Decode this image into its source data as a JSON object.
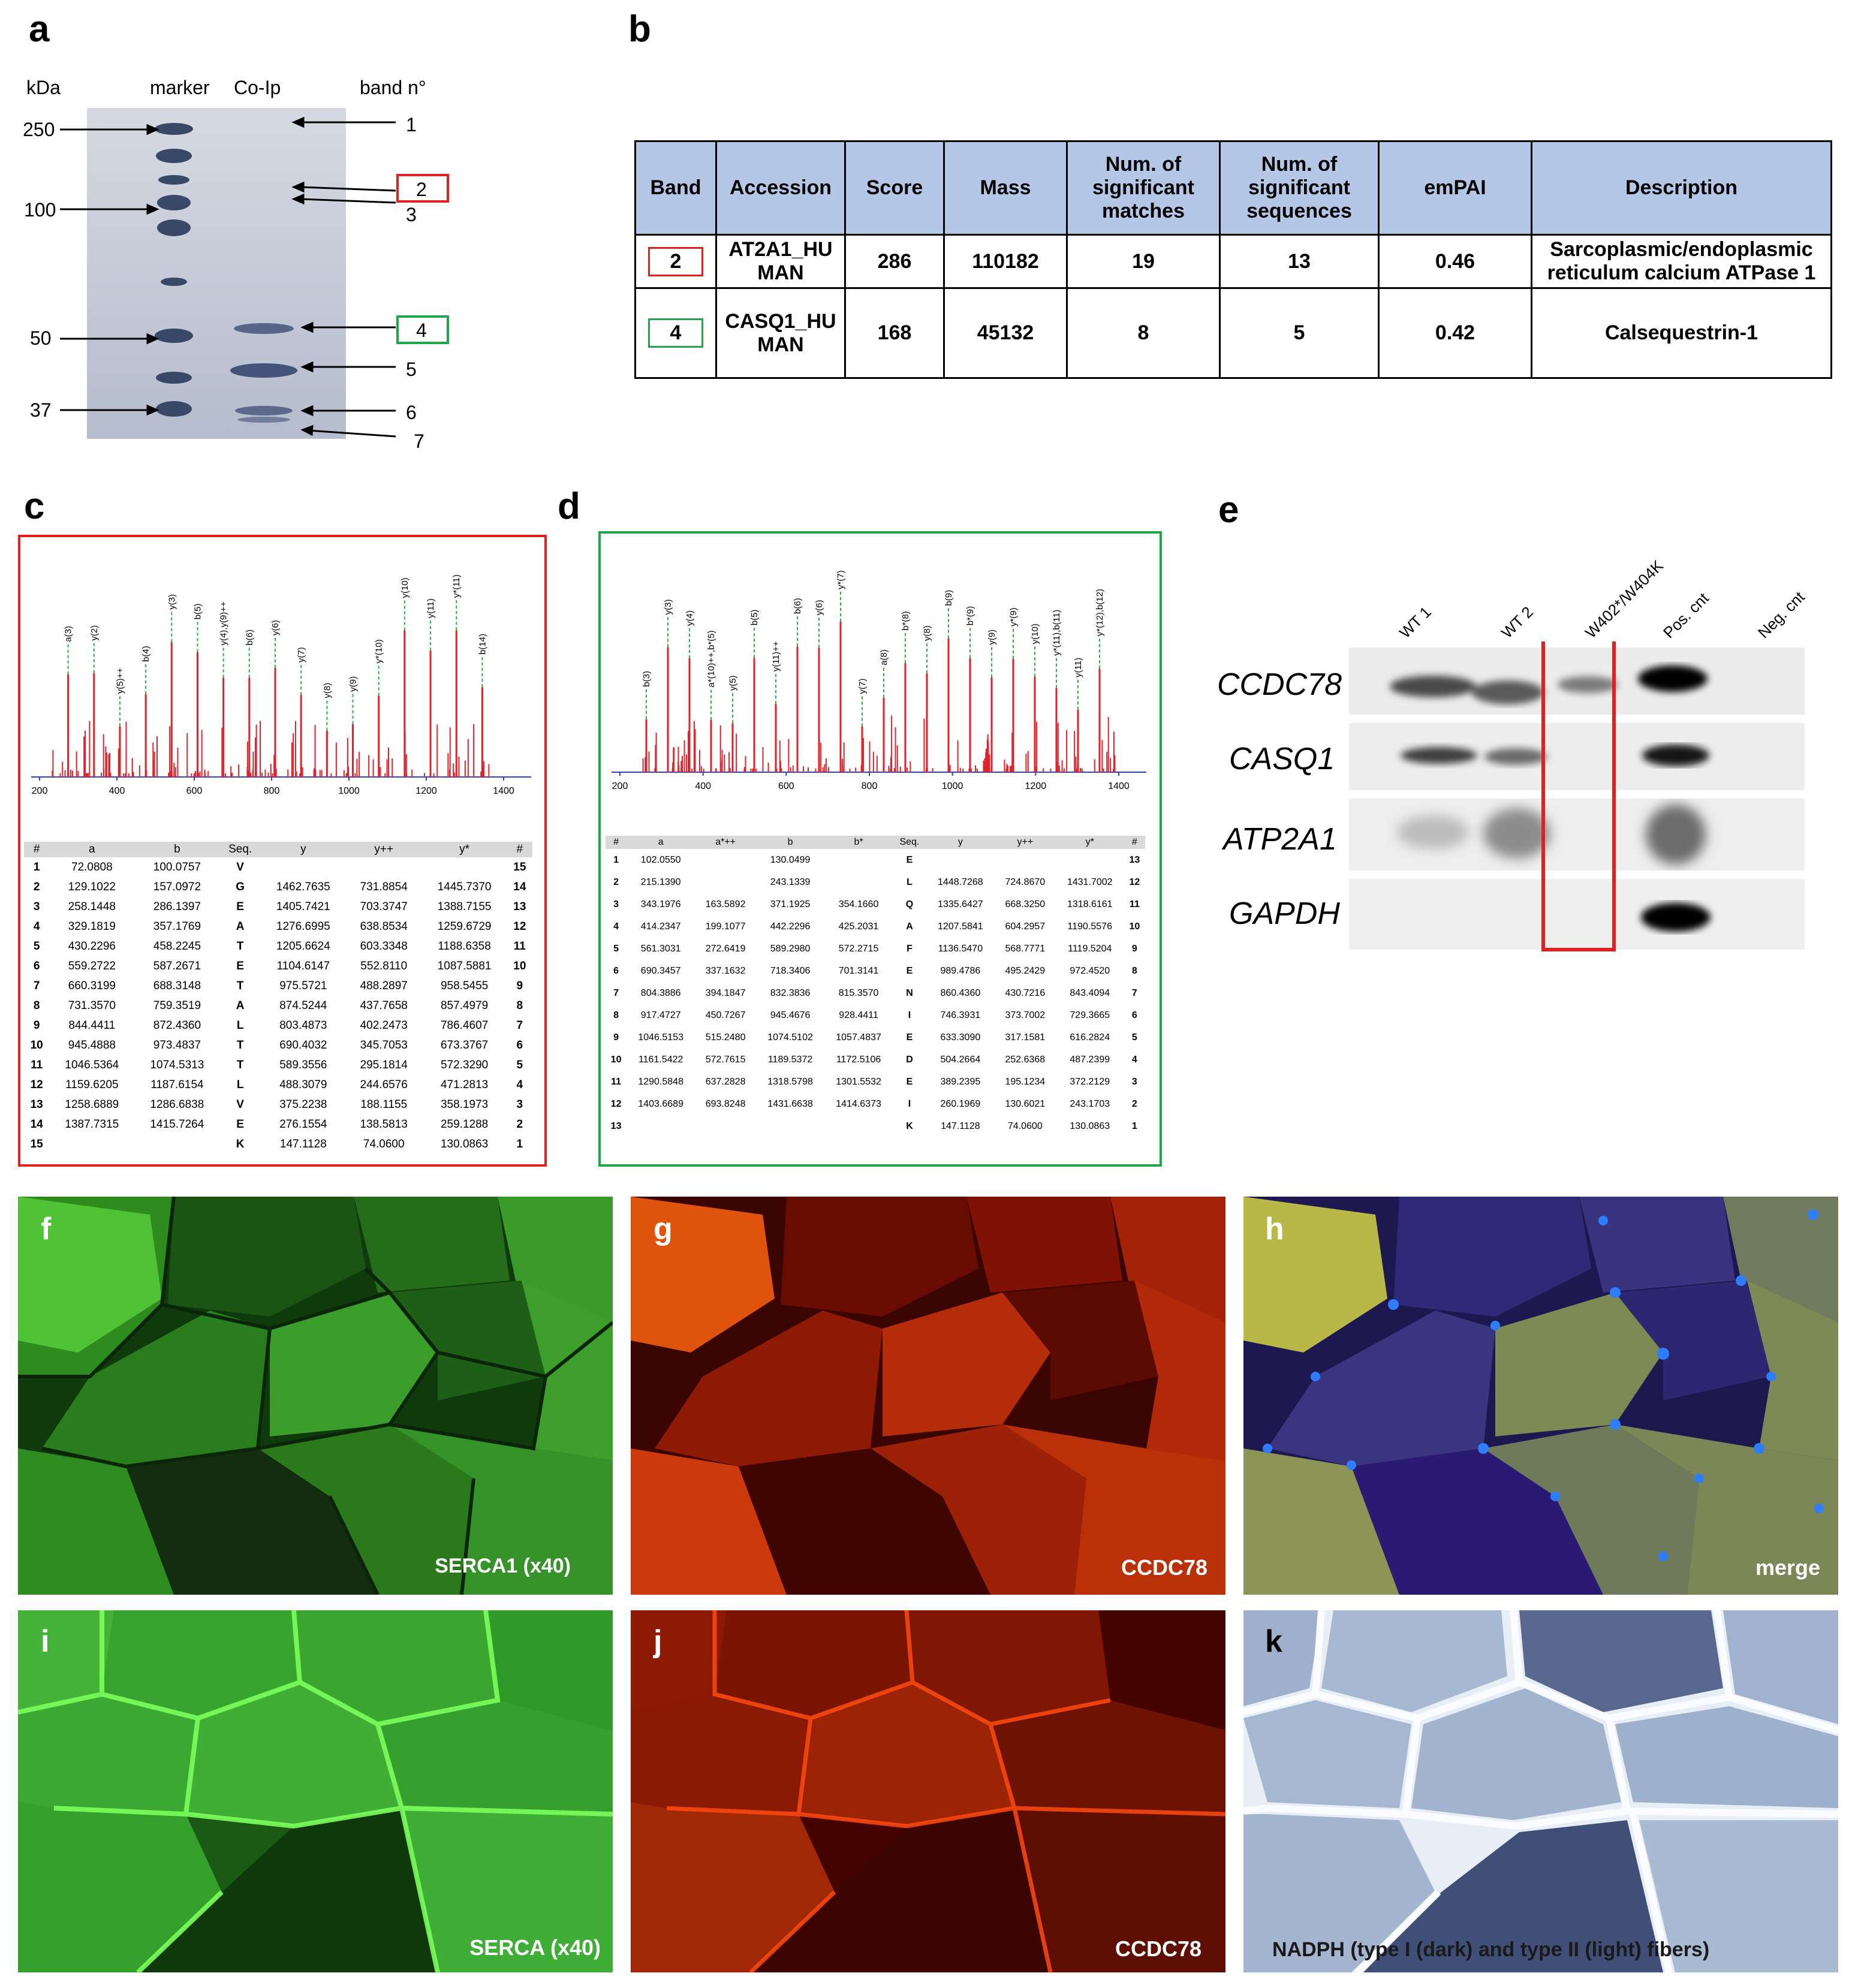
{
  "panel_letters": [
    "a",
    "b",
    "c",
    "d",
    "e",
    "f",
    "g",
    "h",
    "i",
    "j",
    "k"
  ],
  "gel": {
    "kda_label": "kDa",
    "lane_labels": [
      "marker",
      "Co-Ip"
    ],
    "band_header": "band n°",
    "markers": [
      "250",
      "100",
      "50",
      "37"
    ],
    "bands": [
      "1",
      "2",
      "3",
      "4",
      "5",
      "6",
      "7"
    ],
    "highlight_red_band": "2",
    "highlight_green_band": "4",
    "colors": {
      "red": "#e32020",
      "green": "#1fa54a",
      "gel": "#c3c9d6",
      "marker_band": "#2e3b5a"
    }
  },
  "ms_table": {
    "headers": [
      "Band",
      "Accession",
      "Score",
      "Mass",
      "Num. of significant matches",
      "Num. of significant sequences",
      "emPAI",
      "Description"
    ],
    "rows": [
      {
        "band": "2",
        "accession": "AT2A1_HUMAN",
        "score": "286",
        "mass": "110182",
        "matches": "19",
        "sequences": "13",
        "empai": "0.46",
        "description": "Sarcoplasmic/endoplasmic reticulum calcium ATPase 1"
      },
      {
        "band": "4",
        "accession": "CASQ1_HUMAN",
        "score": "168",
        "mass": "45132",
        "matches": "8",
        "sequences": "5",
        "empai": "0.42",
        "description": "Calsequestrin-1"
      }
    ]
  },
  "panel_c": {
    "axis_ticks": [
      "200",
      "400",
      "600",
      "800",
      "1000",
      "1200",
      "1400"
    ],
    "ion_labels": [
      "a(3)",
      "y(2)",
      "y(5)++",
      "b(4)",
      "y(3)",
      "b(5)",
      "y(4),y(9)++",
      "b(6)",
      "y(6)",
      "y(7)",
      "y(8)",
      "y(9)",
      "y*(10)",
      "y(10)",
      "y(11)",
      "y*(11)",
      "b(14)"
    ],
    "table_headers": [
      "#",
      "a",
      "b",
      "Seq.",
      "y",
      "y++",
      "y*",
      "#"
    ],
    "rows": [
      [
        "1",
        "72.0808",
        "100.0757",
        "V",
        "",
        "",
        "",
        "15"
      ],
      [
        "2",
        "129.1022",
        "157.0972",
        "G",
        "1462.7635",
        "731.8854",
        "1445.7370",
        "14"
      ],
      [
        "3",
        "258.1448",
        "286.1397",
        "E",
        "1405.7421",
        "703.3747",
        "1388.7155",
        "13"
      ],
      [
        "4",
        "329.1819",
        "357.1769",
        "A",
        "1276.6995",
        "638.8534",
        "1259.6729",
        "12"
      ],
      [
        "5",
        "430.2296",
        "458.2245",
        "T",
        "1205.6624",
        "603.3348",
        "1188.6358",
        "11"
      ],
      [
        "6",
        "559.2722",
        "587.2671",
        "E",
        "1104.6147",
        "552.8110",
        "1087.5881",
        "10"
      ],
      [
        "7",
        "660.3199",
        "688.3148",
        "T",
        "975.5721",
        "488.2897",
        "958.5455",
        "9"
      ],
      [
        "8",
        "731.3570",
        "759.3519",
        "A",
        "874.5244",
        "437.7658",
        "857.4979",
        "8"
      ],
      [
        "9",
        "844.4411",
        "872.4360",
        "L",
        "803.4873",
        "402.2473",
        "786.4607",
        "7"
      ],
      [
        "10",
        "945.4888",
        "973.4837",
        "T",
        "690.4032",
        "345.7053",
        "673.3767",
        "6"
      ],
      [
        "11",
        "1046.5364",
        "1074.5313",
        "T",
        "589.3556",
        "295.1814",
        "572.3290",
        "5"
      ],
      [
        "12",
        "1159.6205",
        "1187.6154",
        "L",
        "488.3079",
        "244.6576",
        "471.2813",
        "4"
      ],
      [
        "13",
        "1258.6889",
        "1286.6838",
        "V",
        "375.2238",
        "188.1155",
        "358.1973",
        "3"
      ],
      [
        "14",
        "1387.7315",
        "1415.7264",
        "E",
        "276.1554",
        "138.5813",
        "259.1288",
        "2"
      ],
      [
        "15",
        "",
        "",
        "K",
        "147.1128",
        "74.0600",
        "130.0863",
        "1"
      ]
    ]
  },
  "panel_d": {
    "axis_ticks": [
      "200",
      "400",
      "600",
      "800",
      "1000",
      "1200",
      "1400"
    ],
    "ion_labels": [
      "b(3)",
      "y(3)",
      "y(4)",
      "a*(10)++,b*(5)",
      "y(5)",
      "b(5)",
      "y(11)++",
      "b(6)",
      "y(6)",
      "y*(7)",
      "y(7)",
      "a(8)",
      "b*(8)",
      "y(8)",
      "b(9)",
      "b*(9)",
      "y(9)",
      "y*(9)",
      "y(10)",
      "y*(11),b(11)",
      "y(11)",
      "y*(12),b(12)"
    ],
    "table_headers": [
      "#",
      "a",
      "a*++",
      "b",
      "b*",
      "Seq.",
      "y",
      "y++",
      "y*",
      "#"
    ],
    "rows": [
      [
        "1",
        "102.0550",
        "",
        "130.0499",
        "",
        "E",
        "",
        "",
        "",
        "13"
      ],
      [
        "2",
        "215.1390",
        "",
        "243.1339",
        "",
        "L",
        "1448.7268",
        "724.8670",
        "1431.7002",
        "12"
      ],
      [
        "3",
        "343.1976",
        "163.5892",
        "371.1925",
        "354.1660",
        "Q",
        "1335.6427",
        "668.3250",
        "1318.6161",
        "11"
      ],
      [
        "4",
        "414.2347",
        "199.1077",
        "442.2296",
        "425.2031",
        "A",
        "1207.5841",
        "604.2957",
        "1190.5576",
        "10"
      ],
      [
        "5",
        "561.3031",
        "272.6419",
        "589.2980",
        "572.2715",
        "F",
        "1136.5470",
        "568.7771",
        "1119.5204",
        "9"
      ],
      [
        "6",
        "690.3457",
        "337.1632",
        "718.3406",
        "701.3141",
        "E",
        "989.4786",
        "495.2429",
        "972.4520",
        "8"
      ],
      [
        "7",
        "804.3886",
        "394.1847",
        "832.3836",
        "815.3570",
        "N",
        "860.4360",
        "430.7216",
        "843.4094",
        "7"
      ],
      [
        "8",
        "917.4727",
        "450.7267",
        "945.4676",
        "928.4411",
        "I",
        "746.3931",
        "373.7002",
        "729.3665",
        "6"
      ],
      [
        "9",
        "1046.5153",
        "515.2480",
        "1074.5102",
        "1057.4837",
        "E",
        "633.3090",
        "317.1581",
        "616.2824",
        "5"
      ],
      [
        "10",
        "1161.5422",
        "572.7615",
        "1189.5372",
        "1172.5106",
        "D",
        "504.2664",
        "252.6368",
        "487.2399",
        "4"
      ],
      [
        "11",
        "1290.5848",
        "637.2828",
        "1318.5798",
        "1301.5532",
        "E",
        "389.2395",
        "195.1234",
        "372.2129",
        "3"
      ],
      [
        "12",
        "1403.6689",
        "693.8248",
        "1431.6638",
        "1414.6373",
        "I",
        "260.1969",
        "130.6021",
        "243.1703",
        "2"
      ],
      [
        "13",
        "",
        "",
        "",
        "",
        "K",
        "147.1128",
        "74.0600",
        "130.0863",
        "1"
      ]
    ]
  },
  "western": {
    "columns": [
      "WT 1",
      "WT 2",
      "W402*/W404K",
      "Pos. cnt",
      "Neg. cnt"
    ],
    "rows": [
      "CCDC78",
      "CASQ1",
      "ATP2A1",
      "GAPDH"
    ]
  },
  "micro": {
    "f": "SERCA1 (x40)",
    "g": "CCDC78",
    "h": "merge",
    "i": "SERCA (x40)",
    "j": "CCDC78",
    "k": "NADPH (type I (dark) and type II (light) fibers)"
  }
}
